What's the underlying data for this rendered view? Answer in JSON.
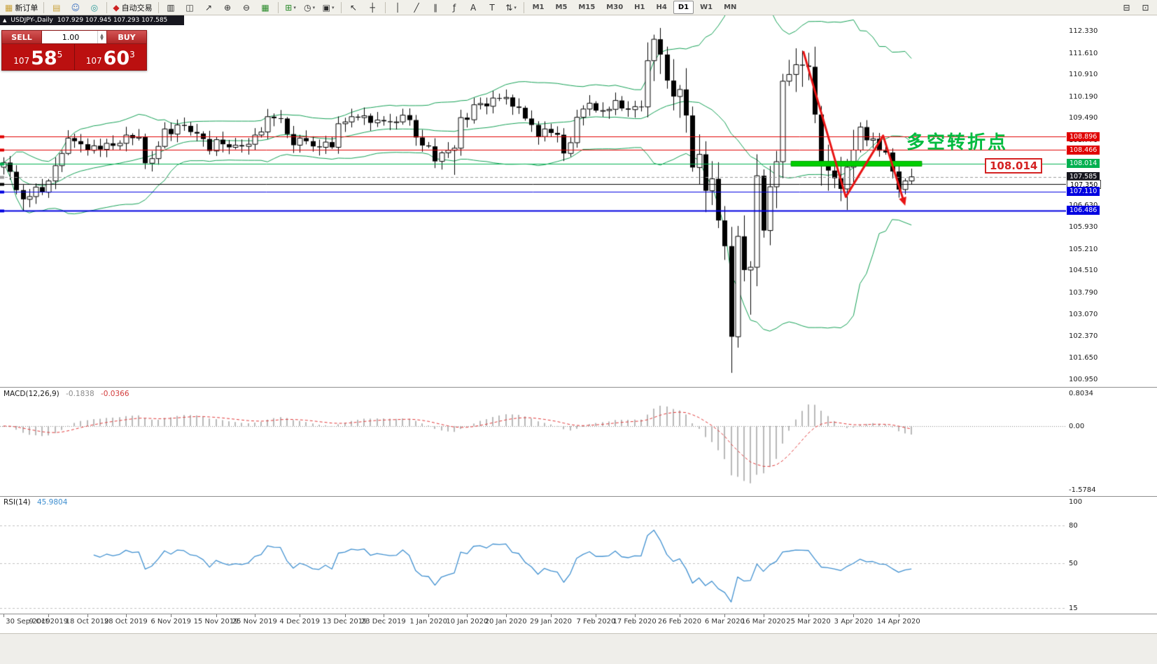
{
  "toolbar": {
    "groups": [
      {
        "items": [
          {
            "name": "new-order-button",
            "glyph": "▦",
            "color": "#caa23a",
            "label": "新订单"
          }
        ]
      },
      {
        "items": [
          {
            "name": "charts-cascade-button",
            "glyph": "▤",
            "color": "#caa23a"
          },
          {
            "name": "contacts-button",
            "glyph": "☺",
            "color": "#3a6fc0"
          },
          {
            "name": "community-button",
            "glyph": "◎",
            "color": "#2a9a9a"
          }
        ]
      },
      {
        "items": [
          {
            "name": "autotrading-button",
            "glyph": "◆",
            "color": "#cc2222",
            "label": "自动交易"
          }
        ]
      },
      {
        "items": [
          {
            "name": "bar-chart-button",
            "glyph": "▥"
          },
          {
            "name": "candlestick-chart-button",
            "glyph": "◫"
          },
          {
            "name": "line-chart-button",
            "glyph": "↗"
          },
          {
            "name": "zoom-in-button",
            "glyph": "⊕"
          },
          {
            "name": "zoom-out-button",
            "glyph": "⊖"
          },
          {
            "name": "tile-windows-button",
            "glyph": "▦",
            "color": "#2a8a2a"
          }
        ]
      },
      {
        "items": [
          {
            "name": "new-chart-button",
            "glyph": "⊞",
            "color": "#2a8a2a",
            "dropdown": true
          },
          {
            "name": "periods-button",
            "glyph": "◷",
            "dropdown": true
          },
          {
            "name": "templates-button",
            "glyph": "▣",
            "dropdown": true
          }
        ]
      },
      {
        "items": [
          {
            "name": "cursor-button",
            "glyph": "↖"
          },
          {
            "name": "crosshair-button",
            "glyph": "┼"
          }
        ]
      },
      {
        "items": [
          {
            "name": "vertical-line-button",
            "glyph": "│"
          },
          {
            "name": "trendline-button",
            "glyph": "╱"
          },
          {
            "name": "equidistant-channel-button",
            "glyph": "∥"
          },
          {
            "name": "fibonacci-button",
            "glyph": "ƒ"
          },
          {
            "name": "text-button",
            "glyph": "A"
          },
          {
            "name": "text-label-button",
            "glyph": "T"
          },
          {
            "name": "arrows-button",
            "glyph": "⇅",
            "dropdown": true
          }
        ]
      }
    ],
    "timeframes": {
      "items": [
        "M1",
        "M5",
        "M15",
        "M30",
        "H1",
        "H4",
        "D1",
        "W1",
        "MN"
      ],
      "active": "D1"
    },
    "right_items": [
      {
        "name": "print-button",
        "glyph": "⊟"
      },
      {
        "name": "print-preview-button",
        "glyph": "⊡"
      }
    ]
  },
  "trade_panel": {
    "symbol_title": "USDJPY-,Daily",
    "ohlc_text": "107.929 107.945 107.293 107.585",
    "sell_label": "SELL",
    "buy_label": "BUY",
    "volume": "1.00",
    "sell_price": {
      "big_figure": "107",
      "pips": "58",
      "pipette": "5"
    },
    "buy_price": {
      "big_figure": "107",
      "pips": "60",
      "pipette": "3"
    }
  },
  "indicators": {
    "macd": {
      "name": "MACD(12,26,9)",
      "value_main": "-0.1838",
      "value_signal": "-0.0366",
      "fast": 12,
      "slow": 26,
      "signal": 9,
      "scale_max": "0.8034",
      "scale_zero": "0.00",
      "scale_min": "-1.5784",
      "bar_color": "#b8b8b8",
      "signal_color": "#e03838"
    },
    "rsi": {
      "name": "RSI(14)",
      "value": "45.9804",
      "period": 14,
      "scale_labels": [
        "100",
        "80",
        "50",
        "15"
      ],
      "levels": [
        80,
        50,
        15
      ],
      "line_color": "#4090d0"
    }
  },
  "chart_data": {
    "type": "candlestick",
    "symbol": "USDJPY-",
    "timeframe": "Daily",
    "first_open": 107.9,
    "closes": [
      108.05,
      107.75,
      107.15,
      106.85,
      106.94,
      107.25,
      107.08,
      107.45,
      107.95,
      108.35,
      108.85,
      108.75,
      108.65,
      108.45,
      108.6,
      108.48,
      108.68,
      108.6,
      108.68,
      108.95,
      108.85,
      108.88,
      108.03,
      108.18,
      108.58,
      109.15,
      108.98,
      109.28,
      109.25,
      109.05,
      109.0,
      108.82,
      108.43,
      108.8,
      108.65,
      108.55,
      108.62,
      108.58,
      108.65,
      108.95,
      109.05,
      109.55,
      109.5,
      109.49,
      108.98,
      108.62,
      108.85,
      108.75,
      108.58,
      108.55,
      108.72,
      108.55,
      109.32,
      109.38,
      109.55,
      109.52,
      109.58,
      109.35,
      109.44,
      109.4,
      109.37,
      109.38,
      109.6,
      109.44,
      108.87,
      108.61,
      108.58,
      108.09,
      108.37,
      108.45,
      108.52,
      109.52,
      109.45,
      109.94,
      109.98,
      109.89,
      110.16,
      110.14,
      110.18,
      109.88,
      109.84,
      109.49,
      109.28,
      108.9,
      109.15,
      109.02,
      108.96,
      108.35,
      108.7,
      109.53,
      109.8,
      109.99,
      109.75,
      109.75,
      109.79,
      110.08,
      109.82,
      109.78,
      109.88,
      109.87,
      111.38,
      112.08,
      111.58,
      110.73,
      110.21,
      110.44,
      109.59,
      107.89,
      108.32,
      107.13,
      107.52,
      106.16,
      105.32,
      102.36,
      105.64,
      104.54,
      104.63,
      107.62,
      105.83,
      107.26,
      108.08,
      110.71,
      110.93,
      111.25,
      111.22,
      111.18,
      109.62,
      107.94,
      107.79,
      107.54,
      107.19,
      107.9,
      108.46,
      109.21,
      108.78,
      108.83,
      108.44,
      108.38,
      107.76,
      107.17,
      107.45,
      107.585
    ],
    "overrides": {
      "3": {
        "low": 106.48
      },
      "70": {
        "low": 107.65
      },
      "101": {
        "high": 112.23
      },
      "112": {
        "low": 104.87
      },
      "113": {
        "low": 101.18
      },
      "116": {
        "low": 103.08
      },
      "121": {
        "high": 110.95
      },
      "124": {
        "high": 111.71
      }
    },
    "bollinger": {
      "period": 20,
      "deviation": 2,
      "color": "#14a055"
    },
    "candles": {
      "up_fill": "#ffffff",
      "down_fill": "#000000",
      "outline": "#000000"
    },
    "y_axis": {
      "labels": [
        "112.330",
        "111.610",
        "110.910",
        "110.190",
        "109.490",
        "108.770",
        "108.060",
        "107.350",
        "106.630",
        "105.930",
        "105.210",
        "104.510",
        "103.790",
        "103.070",
        "102.370",
        "101.650",
        "100.950"
      ]
    },
    "x_axis": {
      "labels": [
        {
          "text": "30 Sep 2019",
          "i": 0
        },
        {
          "text": "9 Oct 2019",
          "i": 7
        },
        {
          "text": "18 Oct 2019",
          "i": 13
        },
        {
          "text": "28 Oct 2019",
          "i": 19
        },
        {
          "text": "6 Nov 2019",
          "i": 26
        },
        {
          "text": "15 Nov 2019",
          "i": 33
        },
        {
          "text": "25 Nov 2019",
          "i": 39
        },
        {
          "text": "4 Dec 2019",
          "i": 46
        },
        {
          "text": "13 Dec 2019",
          "i": 53
        },
        {
          "text": "23 Dec 2019",
          "i": 59
        },
        {
          "text": "1 Jan 2020",
          "i": 66
        },
        {
          "text": "10 Jan 2020",
          "i": 72
        },
        {
          "text": "20 Jan 2020",
          "i": 78
        },
        {
          "text": "29 Jan 2020",
          "i": 85
        },
        {
          "text": "7 Feb 2020",
          "i": 92
        },
        {
          "text": "17 Feb 2020",
          "i": 98
        },
        {
          "text": "26 Feb 2020",
          "i": 105
        },
        {
          "text": "6 Mar 2020",
          "i": 112
        },
        {
          "text": "16 Mar 2020",
          "i": 118
        },
        {
          "text": "25 Mar 2020",
          "i": 125
        },
        {
          "text": "3 Apr 2020",
          "i": 132
        },
        {
          "text": "14 Apr 2020",
          "i": 139
        }
      ]
    },
    "h_lines": [
      {
        "price": 108.896,
        "color": "#e00000",
        "width": 1,
        "style": "solid"
      },
      {
        "price": 108.466,
        "color": "#e00000",
        "width": 1,
        "style": "solid"
      },
      {
        "price": 108.014,
        "color": "#00b050",
        "width": 1,
        "style": "solid"
      },
      {
        "price": 107.585,
        "color": "#9a9a9a",
        "width": 1,
        "style": "dash"
      },
      {
        "price": 107.35,
        "color": "#000000",
        "width": 1,
        "style": "solid"
      },
      {
        "price": 107.11,
        "color": "#0000e0",
        "width": 1,
        "style": "solid"
      },
      {
        "price": 106.486,
        "color": "#0000e0",
        "width": 2,
        "style": "solid"
      }
    ],
    "price_tags": [
      {
        "text": "108.896",
        "bg": "#e00000",
        "fg": "#ffffff",
        "price": 108.896
      },
      {
        "text": "108.466",
        "bg": "#e00000",
        "fg": "#ffffff",
        "price": 108.466
      },
      {
        "text": "108.014",
        "bg": "#00b050",
        "fg": "#ffffff",
        "price": 108.014
      },
      {
        "text": "107.585",
        "bg": "#16161e",
        "fg": "#ffffff",
        "price": 107.585
      },
      {
        "text": "107.350",
        "bg": "#ffffff",
        "fg": "#000000",
        "border": "#444444",
        "price": 107.35
      },
      {
        "text": "107.110",
        "bg": "#0000e0",
        "fg": "#ffffff",
        "price": 107.11
      },
      {
        "text": "106.486",
        "bg": "#0000e0",
        "fg": "#ffffff",
        "price": 106.486
      }
    ],
    "support_bar": {
      "price": 108.014,
      "i_start": 122.3,
      "i_end": 142.6,
      "color": "#00ce00",
      "height": 7
    },
    "zigzag": {
      "color": "#e81414",
      "width": 3,
      "points": [
        {
          "i": 124.2,
          "price": 111.69
        },
        {
          "i": 130.8,
          "price": 106.93
        },
        {
          "i": 136.6,
          "price": 108.93
        },
        {
          "i": 139.7,
          "price": 106.86
        }
      ]
    },
    "annotations": {
      "turning_point": "多空转折点",
      "price_callout": "108.014"
    }
  }
}
